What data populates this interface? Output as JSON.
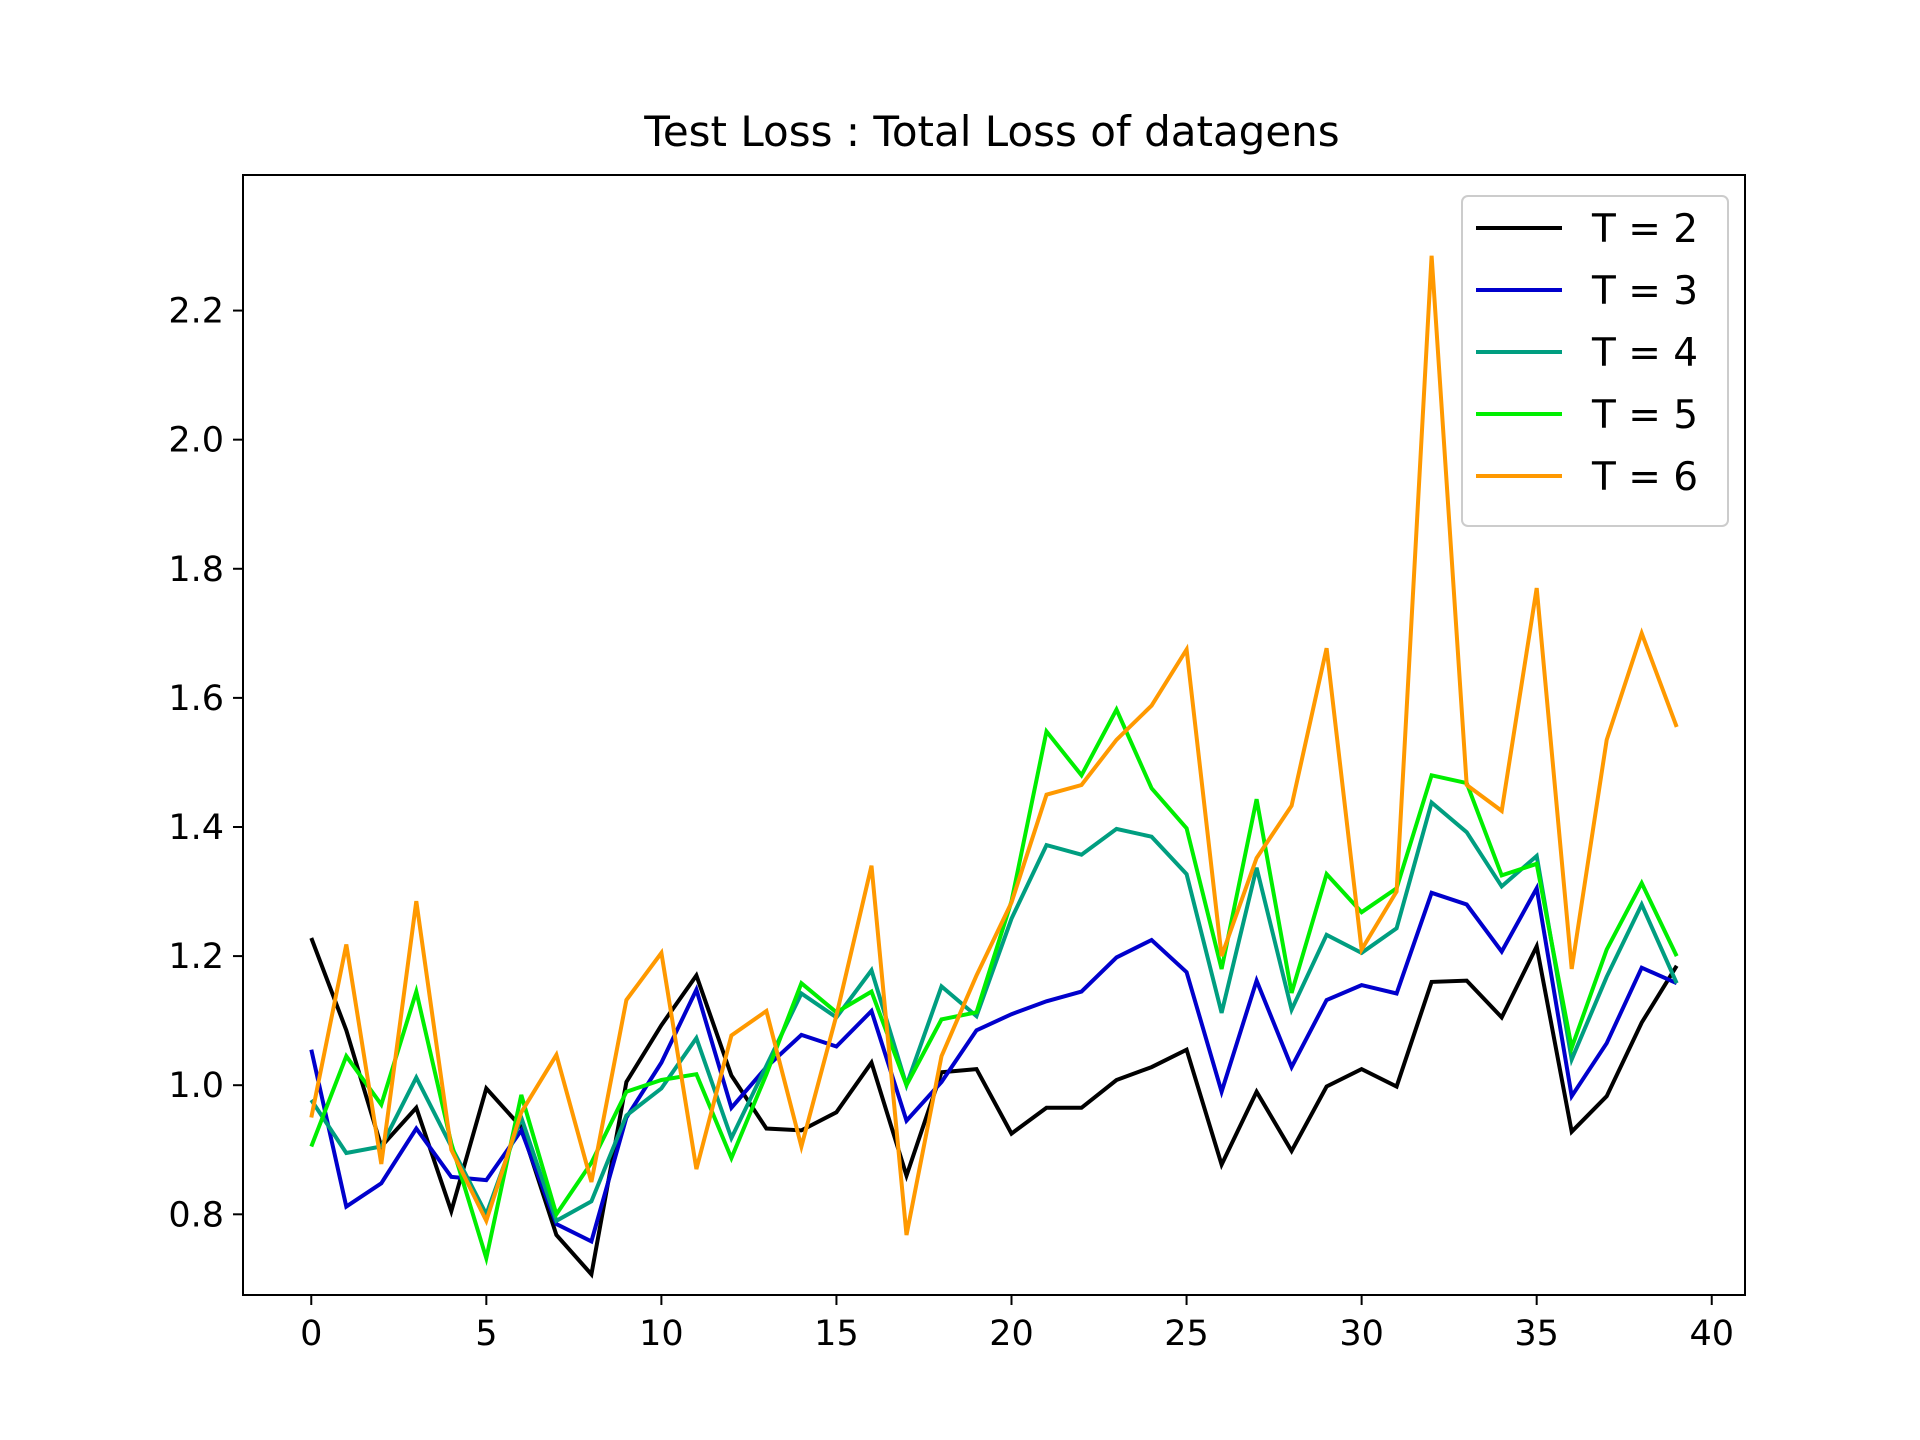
{
  "chart_data": {
    "type": "line",
    "title": "Test Loss : Total Loss of datagens",
    "xlabel": "",
    "ylabel": "",
    "xlim": [
      -1.95,
      40.95
    ],
    "ylim": [
      0.675,
      2.41
    ],
    "x_ticks": [
      0,
      5,
      10,
      15,
      20,
      25,
      30,
      35,
      40
    ],
    "x_tick_labels": [
      "0",
      "5",
      "10",
      "15",
      "20",
      "25",
      "30",
      "35",
      "40"
    ],
    "y_ticks": [
      0.8,
      1.0,
      1.2,
      1.4,
      1.6,
      1.8,
      2.0,
      2.2
    ],
    "y_tick_labels": [
      "0.8",
      "1.0",
      "1.2",
      "1.4",
      "1.6",
      "1.8",
      "2.0",
      "2.2"
    ],
    "grid": false,
    "legend_position": "top-right",
    "x": [
      0,
      1,
      2,
      3,
      4,
      5,
      6,
      7,
      8,
      9,
      10,
      11,
      12,
      13,
      14,
      15,
      16,
      17,
      18,
      19,
      20,
      21,
      22,
      23,
      24,
      25,
      26,
      27,
      28,
      29,
      30,
      31,
      32,
      33,
      34,
      35,
      36,
      37,
      38,
      39
    ],
    "series": [
      {
        "name": "T = 2",
        "color": "#000000",
        "values": [
          1.228,
          1.085,
          0.905,
          0.965,
          0.805,
          0.995,
          0.935,
          0.768,
          0.707,
          1.005,
          1.093,
          1.17,
          1.015,
          0.933,
          0.93,
          0.958,
          1.035,
          0.86,
          1.02,
          1.025,
          0.925,
          0.965,
          0.965,
          1.008,
          1.028,
          1.055,
          0.877,
          0.99,
          0.898,
          0.998,
          1.025,
          0.998,
          1.16,
          1.162,
          1.105,
          1.215,
          0.928,
          0.983,
          1.097,
          1.185
        ]
      },
      {
        "name": "T = 3",
        "color": "#0000cc",
        "values": [
          1.055,
          0.812,
          0.848,
          0.933,
          0.858,
          0.853,
          0.93,
          0.785,
          0.758,
          0.95,
          1.035,
          1.148,
          0.965,
          1.028,
          1.078,
          1.06,
          1.115,
          0.945,
          1.005,
          1.085,
          1.11,
          1.13,
          1.145,
          1.198,
          1.225,
          1.175,
          0.99,
          1.162,
          1.028,
          1.132,
          1.155,
          1.142,
          1.298,
          1.28,
          1.207,
          1.305,
          0.983,
          1.065,
          1.182,
          1.158
        ]
      },
      {
        "name": "T = 4",
        "color": "#009e80",
        "values": [
          0.977,
          0.895,
          0.905,
          1.012,
          0.905,
          0.8,
          0.95,
          0.79,
          0.82,
          0.953,
          0.995,
          1.073,
          0.918,
          1.03,
          1.142,
          1.105,
          1.178,
          1.0,
          1.153,
          1.107,
          1.258,
          1.372,
          1.357,
          1.397,
          1.385,
          1.327,
          1.112,
          1.337,
          1.117,
          1.233,
          1.205,
          1.243,
          1.438,
          1.392,
          1.308,
          1.355,
          1.04,
          1.168,
          1.28,
          1.158
        ]
      },
      {
        "name": "T = 5",
        "color": "#00ee00",
        "values": [
          0.905,
          1.045,
          0.97,
          1.145,
          0.91,
          0.732,
          0.985,
          0.8,
          0.88,
          0.99,
          1.008,
          1.017,
          0.887,
          1.017,
          1.158,
          1.113,
          1.145,
          1.0,
          1.102,
          1.113,
          1.285,
          1.548,
          1.48,
          1.582,
          1.46,
          1.398,
          1.18,
          1.443,
          1.143,
          1.327,
          1.268,
          1.305,
          1.48,
          1.468,
          1.325,
          1.343,
          1.058,
          1.21,
          1.313,
          1.2
        ]
      },
      {
        "name": "T = 6",
        "color": "#ff9900",
        "values": [
          0.95,
          1.218,
          0.878,
          1.285,
          0.9,
          0.79,
          0.958,
          1.047,
          0.85,
          1.132,
          1.205,
          0.87,
          1.077,
          1.115,
          0.905,
          1.108,
          1.34,
          0.768,
          1.045,
          1.17,
          1.283,
          1.45,
          1.465,
          1.535,
          1.588,
          1.675,
          1.2,
          1.352,
          1.433,
          1.677,
          1.21,
          1.3,
          2.285,
          1.465,
          1.425,
          1.77,
          1.18,
          1.535,
          1.7,
          1.555
        ]
      }
    ]
  }
}
